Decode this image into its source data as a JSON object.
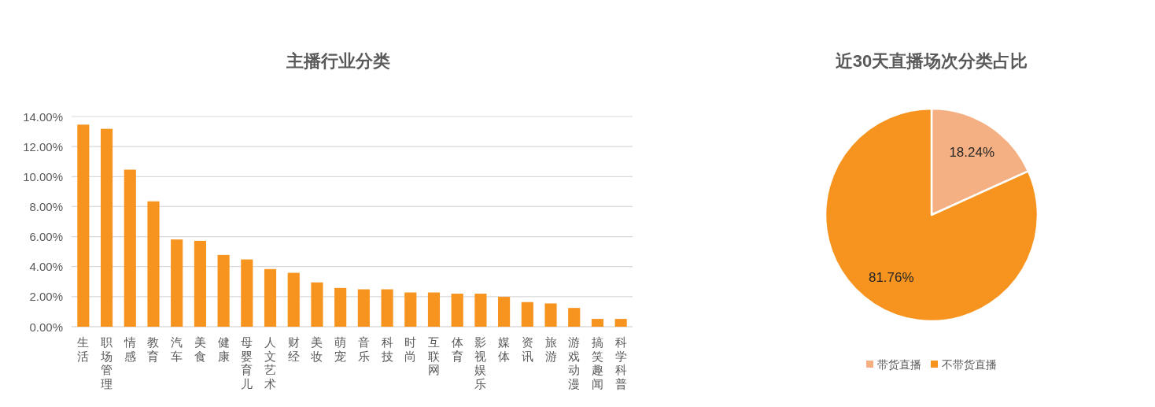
{
  "chart_data": [
    {
      "type": "bar",
      "title": "主播行业分类",
      "categories": [
        "生活",
        "职场管理",
        "情感",
        "教育",
        "汽车",
        "美食",
        "健康",
        "母婴育儿",
        "人文艺术",
        "财经",
        "美妆",
        "萌宠",
        "音乐",
        "科技",
        "时尚",
        "互联网",
        "体育",
        "影视娱乐",
        "媒体",
        "资讯",
        "旅游",
        "游戏动漫",
        "搞笑趣闻",
        "科学科普"
      ],
      "values": [
        13.46,
        13.18,
        10.46,
        8.35,
        5.81,
        5.72,
        4.78,
        4.48,
        3.84,
        3.59,
        2.95,
        2.58,
        2.49,
        2.49,
        2.28,
        2.28,
        2.2,
        2.2,
        1.99,
        1.64,
        1.55,
        1.25,
        0.52,
        0.52
      ],
      "color": "#f7941f",
      "ylim": [
        0,
        14
      ],
      "yticks": [
        {
          "value": 0,
          "label": "0.00%"
        },
        {
          "value": 2,
          "label": "2.00%"
        },
        {
          "value": 4,
          "label": "4.00%"
        },
        {
          "value": 6,
          "label": "6.00%"
        },
        {
          "value": 8,
          "label": "8.00%"
        },
        {
          "value": 10,
          "label": "10.00%"
        },
        {
          "value": 12,
          "label": "12.00%"
        },
        {
          "value": 14,
          "label": "14.00%"
        }
      ],
      "grid": "y"
    },
    {
      "type": "pie",
      "title": "近30天直播场次分类占比",
      "categories": [
        "带货直播",
        "不带货直播"
      ],
      "values": [
        18.24,
        81.76
      ],
      "colors": [
        "#f4b083",
        "#f7941f"
      ],
      "value_labels": [
        "18.24%",
        "81.76%"
      ],
      "legend": "bottom"
    }
  ]
}
